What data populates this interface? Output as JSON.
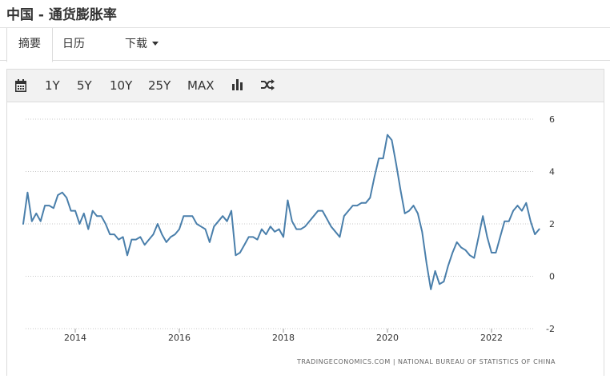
{
  "header": {
    "title": "中国 - 通货膨胀率"
  },
  "tabs": [
    {
      "label": "摘要",
      "active": true
    },
    {
      "label": "日历",
      "active": false
    },
    {
      "label": "下载",
      "active": false,
      "dropdown": true
    }
  ],
  "toolbar": {
    "calendar_icon": "calendar-icon",
    "ranges": [
      "1Y",
      "5Y",
      "10Y",
      "25Y",
      "MAX"
    ],
    "chart_type_icon": "bar-chart-icon",
    "compare_icon": "shuffle-icon"
  },
  "colors": {
    "line": "#4a7fab",
    "grid": "#c8c8c8"
  },
  "chart_data": {
    "type": "line",
    "title": "",
    "xlabel": "",
    "ylabel": "",
    "y_axis_side": "right",
    "grid": "horizontal dotted",
    "ylim": [
      -2,
      6
    ],
    "y_ticks": [
      "6",
      "4",
      "2",
      "0",
      "-2"
    ],
    "x_ticks": [
      "2014",
      "2016",
      "2018",
      "2020",
      "2022"
    ],
    "source": "TRADINGECONOMICS.COM | NATIONAL BUREAU OF STATISTICS OF CHINA",
    "series": [
      {
        "x": [
          "2013-01",
          "2013-02",
          "2013-03",
          "2013-04",
          "2013-05",
          "2013-06",
          "2013-07",
          "2013-08",
          "2013-09",
          "2013-10",
          "2013-11",
          "2013-12",
          "2014-01",
          "2014-02",
          "2014-03",
          "2014-04",
          "2014-05",
          "2014-06",
          "2014-07",
          "2014-08",
          "2014-09",
          "2014-10",
          "2014-11",
          "2014-12",
          "2015-01",
          "2015-02",
          "2015-03",
          "2015-04",
          "2015-05",
          "2015-06",
          "2015-07",
          "2015-08",
          "2015-09",
          "2015-10",
          "2015-11",
          "2015-12",
          "2016-01",
          "2016-02",
          "2016-03",
          "2016-04",
          "2016-05",
          "2016-06",
          "2016-07",
          "2016-08",
          "2016-09",
          "2016-10",
          "2016-11",
          "2016-12",
          "2017-01",
          "2017-02",
          "2017-03",
          "2017-04",
          "2017-05",
          "2017-06",
          "2017-07",
          "2017-08",
          "2017-09",
          "2017-10",
          "2017-11",
          "2017-12",
          "2018-01",
          "2018-02",
          "2018-03",
          "2018-04",
          "2018-05",
          "2018-06",
          "2018-07",
          "2018-08",
          "2018-09",
          "2018-10",
          "2018-11",
          "2018-12",
          "2019-01",
          "2019-02",
          "2019-03",
          "2019-04",
          "2019-05",
          "2019-06",
          "2019-07",
          "2019-08",
          "2019-09",
          "2019-10",
          "2019-11",
          "2019-12",
          "2020-01",
          "2020-02",
          "2020-03",
          "2020-04",
          "2020-05",
          "2020-06",
          "2020-07",
          "2020-08",
          "2020-09",
          "2020-10",
          "2020-11",
          "2020-12",
          "2021-01",
          "2021-02",
          "2021-03",
          "2021-04",
          "2021-05",
          "2021-06",
          "2021-07",
          "2021-08",
          "2021-09",
          "2021-10",
          "2021-11",
          "2021-12",
          "2022-01",
          "2022-02",
          "2022-03",
          "2022-04",
          "2022-05",
          "2022-06",
          "2022-07",
          "2022-08",
          "2022-09",
          "2022-10",
          "2022-11",
          "2022-12"
        ],
        "values": [
          2.0,
          3.2,
          2.1,
          2.4,
          2.1,
          2.7,
          2.7,
          2.6,
          3.1,
          3.2,
          3.0,
          2.5,
          2.5,
          2.0,
          2.4,
          1.8,
          2.5,
          2.3,
          2.3,
          2.0,
          1.6,
          1.6,
          1.4,
          1.5,
          0.8,
          1.4,
          1.4,
          1.5,
          1.2,
          1.4,
          1.6,
          2.0,
          1.6,
          1.3,
          1.5,
          1.6,
          1.8,
          2.3,
          2.3,
          2.3,
          2.0,
          1.9,
          1.8,
          1.3,
          1.9,
          2.1,
          2.3,
          2.1,
          2.5,
          0.8,
          0.9,
          1.2,
          1.5,
          1.5,
          1.4,
          1.8,
          1.6,
          1.9,
          1.7,
          1.8,
          1.5,
          2.9,
          2.1,
          1.8,
          1.8,
          1.9,
          2.1,
          2.3,
          2.5,
          2.5,
          2.2,
          1.9,
          1.7,
          1.5,
          2.3,
          2.5,
          2.7,
          2.7,
          2.8,
          2.8,
          3.0,
          3.8,
          4.5,
          4.5,
          5.4,
          5.2,
          4.3,
          3.3,
          2.4,
          2.5,
          2.7,
          2.4,
          1.7,
          0.5,
          -0.5,
          0.2,
          -0.3,
          -0.2,
          0.4,
          0.9,
          1.3,
          1.1,
          1.0,
          0.8,
          0.7,
          1.5,
          2.3,
          1.5,
          0.9,
          0.9,
          1.5,
          2.1,
          2.1,
          2.5,
          2.7,
          2.5,
          2.8,
          2.1,
          1.6,
          1.8
        ]
      }
    ]
  }
}
